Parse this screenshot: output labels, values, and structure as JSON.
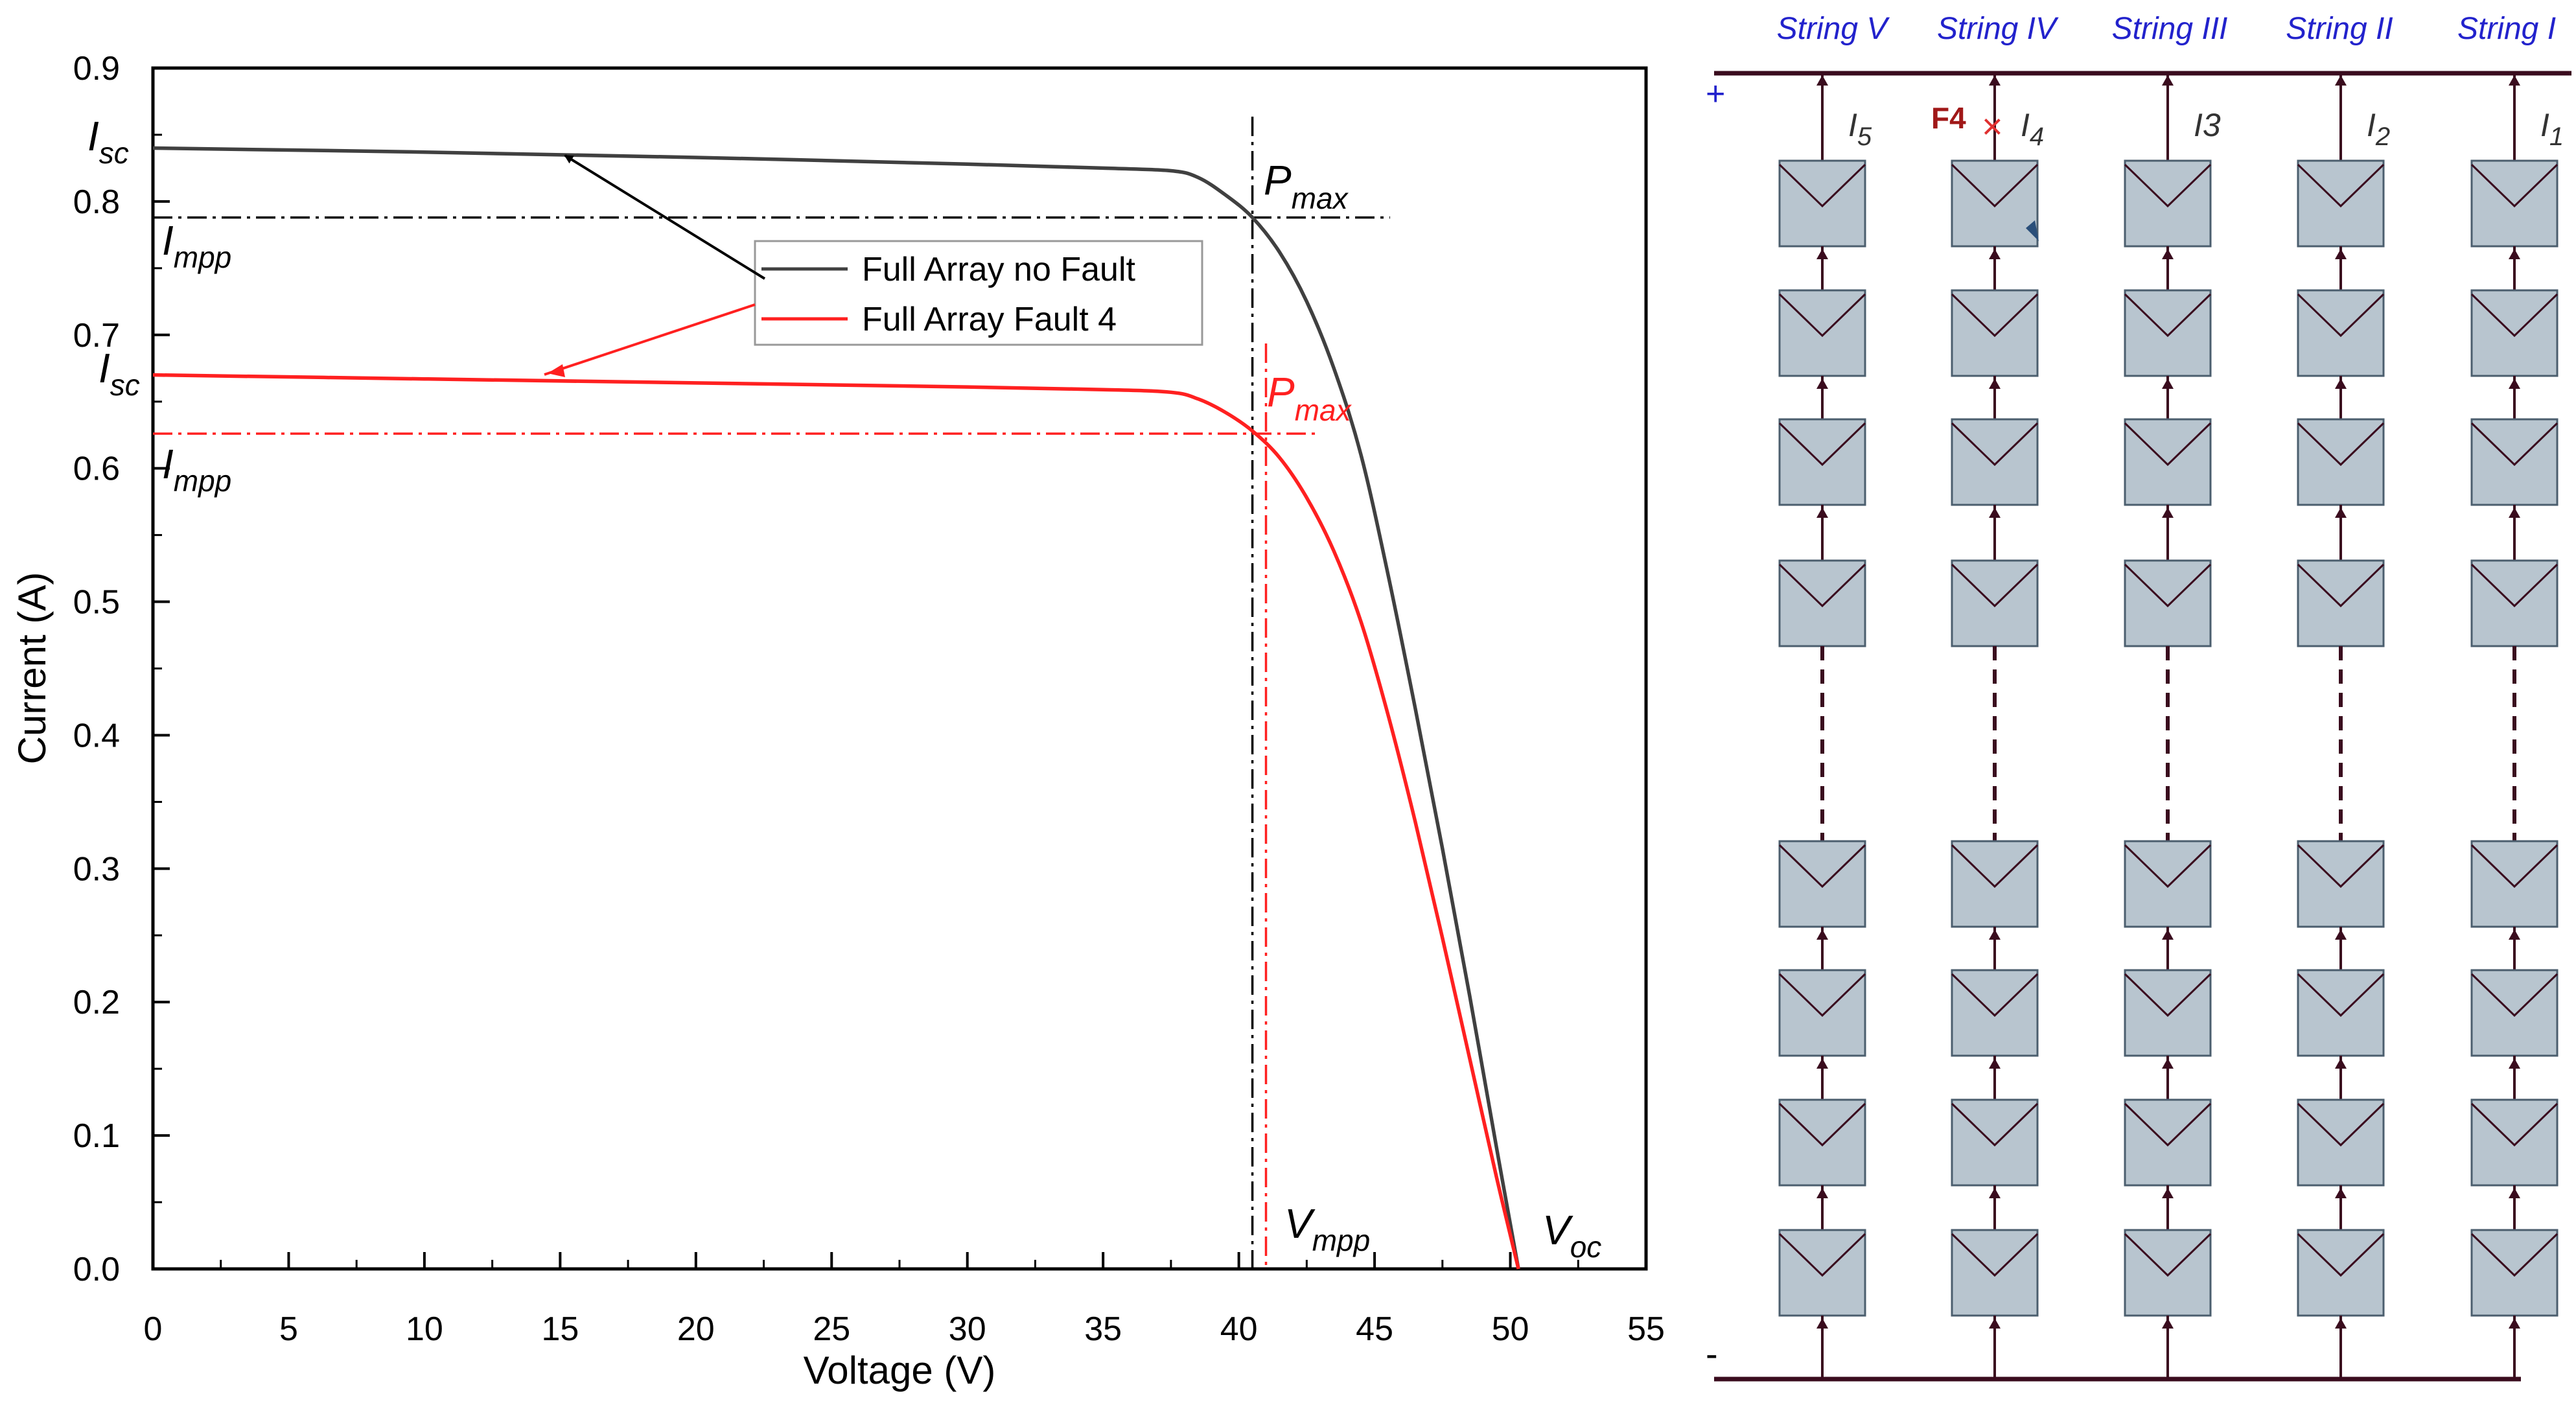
{
  "chart_data": {
    "type": "line",
    "xlabel": "Voltage (V)",
    "ylabel": "Current (A)",
    "xlim": [
      0,
      55
    ],
    "ylim": [
      0,
      0.9
    ],
    "x_ticks": [
      0,
      5,
      10,
      15,
      20,
      25,
      30,
      35,
      40,
      45,
      50,
      55
    ],
    "y_ticks": [
      0.0,
      0.1,
      0.2,
      0.3,
      0.4,
      0.5,
      0.6,
      0.7,
      0.8,
      0.9
    ],
    "x_tick_labels": [
      "0",
      "5",
      "10",
      "15",
      "20",
      "25",
      "30",
      "35",
      "40",
      "45",
      "50",
      "55"
    ],
    "y_tick_labels": [
      "0.0",
      "0.1",
      "0.2",
      "0.3",
      "0.4",
      "0.5",
      "0.6",
      "0.7",
      "0.8",
      "0.9"
    ],
    "series": [
      {
        "name": "Full Array no Fault",
        "color": "#404040",
        "x": [
          0,
          10,
          20,
          30,
          35,
          37.5,
          38.5,
          39.5,
          40.5,
          41.5,
          42.5,
          43.5,
          44.5,
          45.5,
          46.5,
          47.5,
          48.5,
          49.5,
          50.3
        ],
        "y": [
          0.84,
          0.837,
          0.833,
          0.828,
          0.825,
          0.823,
          0.818,
          0.805,
          0.788,
          0.762,
          0.725,
          0.675,
          0.61,
          0.52,
          0.42,
          0.315,
          0.205,
          0.09,
          0.0
        ]
      },
      {
        "name": "Full Array Fault 4",
        "color": "#ff2020",
        "x": [
          0,
          10,
          20,
          30,
          35,
          37.5,
          38.5,
          39.5,
          40.5,
          41.5,
          42.5,
          43.5,
          44.5,
          45.5,
          46.5,
          47.5,
          48.5,
          49.5,
          50.3
        ],
        "y": [
          0.67,
          0.667,
          0.664,
          0.661,
          0.659,
          0.657,
          0.652,
          0.642,
          0.628,
          0.608,
          0.578,
          0.538,
          0.485,
          0.415,
          0.335,
          0.248,
          0.158,
          0.068,
          0.0
        ]
      }
    ],
    "reference_lines": {
      "no_fault": {
        "impp": 0.788,
        "vmpp": 40.5,
        "color": "#000000"
      },
      "fault": {
        "impp": 0.626,
        "vmpp": 41.0,
        "color": "#ff2020"
      }
    },
    "annotations": {
      "isc_no_fault": {
        "main": "I",
        "sub": "sc",
        "at": [
          0,
          0.84
        ]
      },
      "impp_no_fault": {
        "main": "I",
        "sub": "mpp",
        "at": [
          0,
          0.788
        ]
      },
      "pmax_no_fault": {
        "main": "P",
        "sub": "max",
        "at": [
          40.5,
          0.788
        ]
      },
      "isc_fault": {
        "main": "I",
        "sub": "sc",
        "at": [
          0,
          0.67
        ]
      },
      "impp_fault": {
        "main": "I",
        "sub": "mpp",
        "at": [
          0,
          0.626
        ]
      },
      "pmax_fault": {
        "main": "P",
        "sub": "max",
        "at": [
          41.0,
          0.626
        ]
      },
      "vmpp": {
        "main": "V",
        "sub": "mpp",
        "at": [
          41,
          0
        ]
      },
      "voc": {
        "main": "V",
        "sub": "oc",
        "at": [
          50.3,
          0
        ]
      }
    },
    "legend": {
      "placement": "top-center",
      "entries": [
        "Full Array no Fault",
        "Full Array Fault 4"
      ]
    }
  },
  "diagram": {
    "strings": [
      {
        "label": "String V",
        "current_main": "I",
        "current_sub": "5"
      },
      {
        "label": "String IV",
        "current_main": "I",
        "current_sub": "4"
      },
      {
        "label": "String III",
        "current_main": "I3",
        "current_sub": ""
      },
      {
        "label": "String II",
        "current_main": "I",
        "current_sub": "2"
      },
      {
        "label": "String I",
        "current_main": "I",
        "current_sub": "1"
      }
    ],
    "fault_label": "F4",
    "fault_mark": "×",
    "plus_sign": "+",
    "minus_sign": "-",
    "modules_per_string_shown": 8,
    "panel_color": "#b8c5cf",
    "wire_color": "#3a0c1e",
    "label_color": "#2222cc",
    "fault_color": "#a01818"
  }
}
